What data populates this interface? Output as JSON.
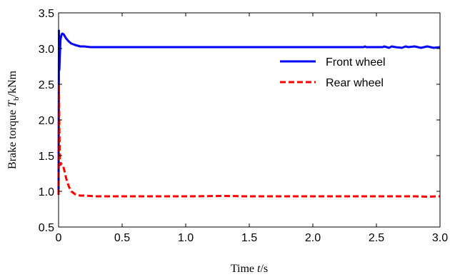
{
  "chart_data": {
    "type": "line",
    "title": "",
    "xlabel": "Time  t/s",
    "ylabel": "Brake torque  Tb/kNm",
    "xlabel_parts": {
      "prefix": "Time ",
      "symbol": "t",
      "suffix": "/s"
    },
    "ylabel_parts": {
      "prefix": "Brake torque ",
      "symbol": "T",
      "subscript": "b",
      "suffix": "/kNm"
    },
    "xlim": [
      0,
      3.0
    ],
    "ylim": [
      0.5,
      3.5
    ],
    "xticks": [
      0,
      0.5,
      1.0,
      1.5,
      2.0,
      2.5,
      3.0
    ],
    "xtick_labels": [
      "0",
      "0.5",
      "1.0",
      "1.5",
      "2.0",
      "2.5",
      "3.0"
    ],
    "yticks": [
      0.5,
      1.0,
      1.5,
      2.0,
      2.5,
      3.0,
      3.5
    ],
    "ytick_labels": [
      "0.5",
      "1.0",
      "1.5",
      "2.0",
      "2.5",
      "3.0",
      "3.5"
    ],
    "grid": false,
    "legend_position": "right",
    "series": [
      {
        "name": "Front wheel",
        "color": "#0000ff",
        "style": "solid",
        "x": [
          0,
          0.003,
          0.006,
          0.01,
          0.015,
          0.02,
          0.025,
          0.03,
          0.04,
          0.05,
          0.06,
          0.08,
          0.1,
          0.13,
          0.17,
          0.2,
          0.25,
          0.3,
          0.5,
          1.0,
          1.5,
          2.0,
          2.3,
          2.4,
          2.41,
          2.42,
          2.5,
          2.55,
          2.56,
          2.6,
          2.62,
          2.65,
          2.7,
          2.73,
          2.75,
          2.8,
          2.85,
          2.9,
          2.95,
          3.0
        ],
        "y": [
          0.95,
          3.25,
          2.7,
          2.9,
          3.12,
          3.17,
          3.2,
          3.21,
          3.2,
          3.17,
          3.14,
          3.1,
          3.07,
          3.05,
          3.03,
          3.03,
          3.02,
          3.02,
          3.02,
          3.02,
          3.02,
          3.02,
          3.02,
          3.02,
          3.03,
          3.02,
          3.02,
          3.02,
          3.03,
          3.01,
          3.03,
          3.02,
          3.01,
          3.03,
          3.02,
          3.03,
          3.01,
          3.03,
          3.01,
          3.02
        ]
      },
      {
        "name": "Rear wheel",
        "color": "#ff0000",
        "style": "dashed",
        "x": [
          0,
          0.003,
          0.006,
          0.01,
          0.015,
          0.02,
          0.03,
          0.04,
          0.05,
          0.06,
          0.08,
          0.1,
          0.13,
          0.17,
          0.2,
          0.25,
          0.3,
          0.5,
          1.0,
          1.3,
          1.5,
          2.0,
          2.5,
          2.7,
          2.8,
          2.9,
          3.0
        ],
        "y": [
          0.95,
          2.5,
          1.9,
          1.45,
          1.37,
          1.39,
          1.37,
          1.33,
          1.26,
          1.18,
          1.07,
          1.0,
          0.96,
          0.94,
          0.94,
          0.935,
          0.93,
          0.93,
          0.93,
          0.935,
          0.93,
          0.93,
          0.93,
          0.93,
          0.93,
          0.925,
          0.93
        ]
      }
    ]
  }
}
